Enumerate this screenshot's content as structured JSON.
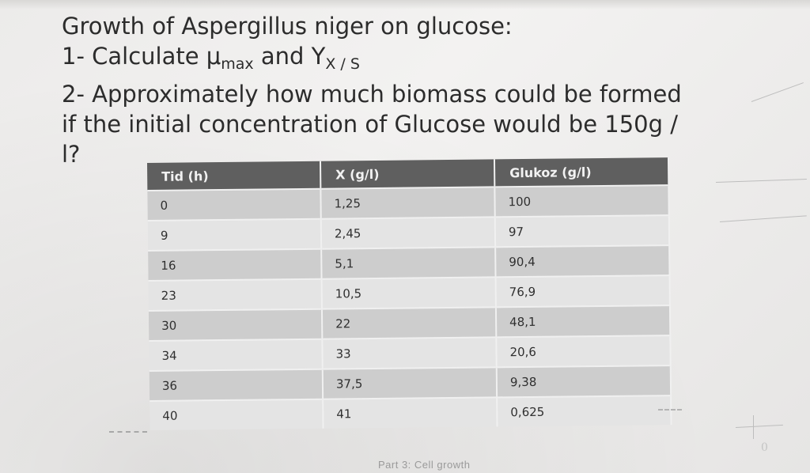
{
  "question": {
    "line1": "Growth of Aspergillus niger on glucose:",
    "line2_pre": "1- Calculate μ",
    "line2_sub1": "max",
    "line2_mid": " and Y",
    "line2_sub2": "X / S",
    "line3": "2- Approximately how much biomass could be formed",
    "line4": "if the initial concentration of Glucose would be 150g /",
    "line5": "l?"
  },
  "table": {
    "headers": [
      "Tid (h)",
      "X (g/l)",
      "Glukoz (g/l)"
    ],
    "rows": [
      [
        "0",
        "1,25",
        "100"
      ],
      [
        "9",
        "2,45",
        "97"
      ],
      [
        "16",
        "5,1",
        "90,4"
      ],
      [
        "23",
        "10,5",
        "76,9"
      ],
      [
        "30",
        "22",
        "48,1"
      ],
      [
        "34",
        "33",
        "20,6"
      ],
      [
        "36",
        "37,5",
        "9,38"
      ],
      [
        "40",
        "41",
        "0,625"
      ]
    ]
  },
  "footer": {
    "text": "Part 3: Cell growth"
  },
  "marks": {
    "zero": "0"
  }
}
